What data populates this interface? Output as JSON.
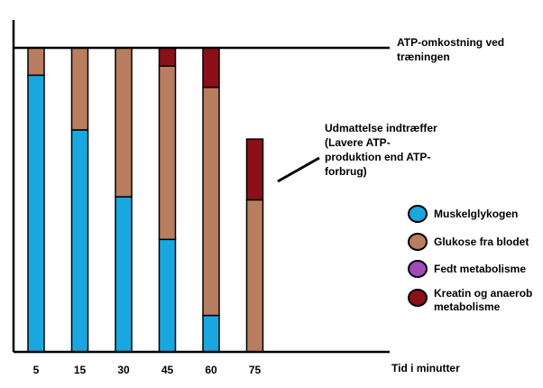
{
  "chart_data": {
    "type": "bar",
    "stacked": true,
    "categories": [
      "5",
      "15",
      "30",
      "45",
      "60",
      "75"
    ],
    "xlabel": "Tid i minutter",
    "ylim": [
      0,
      100
    ],
    "series": [
      {
        "name": "Muskelglykogen",
        "color": "#1AA7E0",
        "values": [
          91,
          73,
          51,
          37,
          12,
          0
        ]
      },
      {
        "name": "Glukose fra blodet",
        "color": "#B97D5F",
        "values": [
          9,
          27,
          49,
          57,
          75,
          50
        ]
      },
      {
        "name": "Fedt metabolisme",
        "color": "#A04BB8",
        "values": [
          0,
          0,
          0,
          0,
          0,
          0
        ]
      },
      {
        "name": "Kreatin og anaerob metabolisme",
        "color": "#8B1018",
        "values": [
          0,
          0,
          0,
          6,
          13,
          20
        ]
      }
    ],
    "reference_line": {
      "value": 100,
      "label": [
        "ATP-omkostning ved",
        "træningen"
      ]
    },
    "annotation": {
      "category": "75",
      "lines": [
        "Udmattelse indtræffer",
        "(Lavere ATP-",
        "produktion end ATP-",
        "forbrug)"
      ]
    },
    "legend_position": "right"
  }
}
